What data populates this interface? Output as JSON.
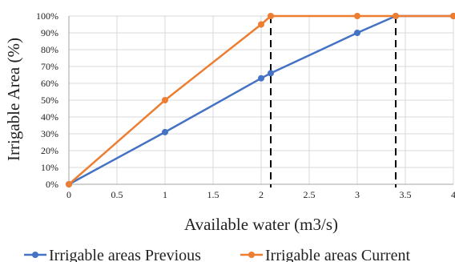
{
  "chart_data": {
    "type": "line",
    "xlabel": "Available water (m3/s)",
    "ylabel": "Irrigable Area (%)",
    "xlim": [
      0,
      4
    ],
    "ylim": [
      0,
      100
    ],
    "x_ticks": [
      "0",
      "0.5",
      "1",
      "1.5",
      "2",
      "2.5",
      "3",
      "3.5",
      "4"
    ],
    "y_ticks": [
      "0%",
      "10%",
      "20%",
      "30%",
      "40%",
      "50%",
      "60%",
      "70%",
      "80%",
      "90%",
      "100%"
    ],
    "grid": true,
    "legend_position": "bottom",
    "series": [
      {
        "name": "Irrigable areas Previous",
        "color": "#4472C4",
        "x": [
          0,
          1,
          2,
          2.1,
          3,
          3.4,
          4
        ],
        "y": [
          0,
          31,
          63,
          66,
          90,
          100,
          100
        ]
      },
      {
        "name": "Irrigable areas Current",
        "color": "#ED7D31",
        "x": [
          0,
          1,
          2,
          2.1,
          3,
          3.4,
          4
        ],
        "y": [
          0,
          50,
          95,
          100,
          100,
          100,
          100
        ]
      }
    ],
    "reference_lines": [
      {
        "x": 2.1,
        "style": "dashed",
        "color": "#000000"
      },
      {
        "x": 3.4,
        "style": "dashed",
        "color": "#000000"
      }
    ]
  }
}
